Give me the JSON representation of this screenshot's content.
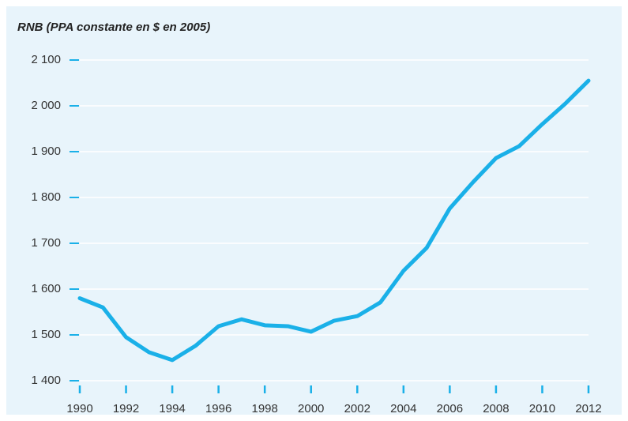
{
  "chart_data": {
    "type": "line",
    "title": "RNB (PPA constante en $ en 2005)",
    "x": [
      1990,
      1991,
      1992,
      1993,
      1994,
      1995,
      1996,
      1997,
      1998,
      1999,
      2000,
      2001,
      2002,
      2003,
      2004,
      2005,
      2006,
      2007,
      2008,
      2009,
      2010,
      2011,
      2012
    ],
    "series": [
      {
        "name": "RNB",
        "color": "#1ab0e8",
        "values": [
          1580,
          1560,
          1495,
          1462,
          1445,
          1476,
          1519,
          1534,
          1521,
          1519,
          1507,
          1531,
          1541,
          1571,
          1640,
          1690,
          1776,
          1833,
          1886,
          1912,
          1960,
          2005,
          2055
        ]
      }
    ],
    "xlim": [
      1990,
      2012
    ],
    "xticks": [
      1990,
      1992,
      1994,
      1996,
      1998,
      2000,
      2002,
      2004,
      2006,
      2008,
      2010,
      2012
    ],
    "ylim": [
      1400,
      2100
    ],
    "yticks": [
      {
        "value": 1400,
        "label": "1 400"
      },
      {
        "value": 1500,
        "label": "1 500"
      },
      {
        "value": 1600,
        "label": "1 600"
      },
      {
        "value": 1700,
        "label": "1 700"
      },
      {
        "value": 1800,
        "label": "1 800"
      },
      {
        "value": 1900,
        "label": "1 900"
      },
      {
        "value": 2000,
        "label": "2 000"
      },
      {
        "value": 2100,
        "label": "2 100"
      }
    ],
    "grid": true
  }
}
